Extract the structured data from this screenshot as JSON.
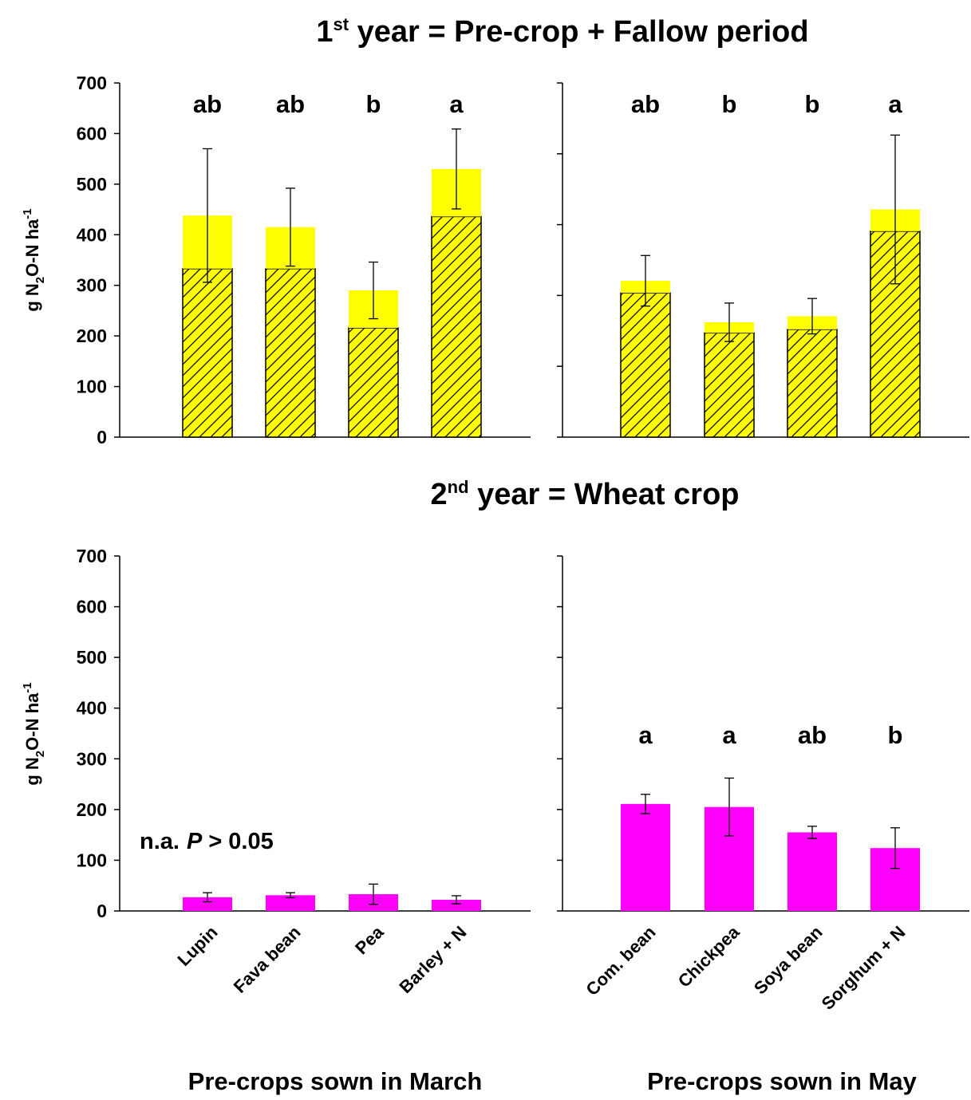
{
  "chart_data": [
    {
      "type": "bar",
      "stacked": true,
      "title": {
        "lead": "1",
        "sup": "st",
        "rest": " year = Pre-crop + Fallow period"
      },
      "ylabel": {
        "a": "g N",
        "sub": "2",
        "b": "O-N ha",
        "sup": "-1"
      },
      "series": [
        {
          "color": "#ffff00",
          "hatch": true,
          "values": [
            333,
            333,
            216,
            436
          ]
        },
        {
          "color": "#ffff00",
          "values": [
            105,
            82,
            74,
            94
          ],
          "errors": [
            132,
            77,
            56,
            79
          ]
        }
      ],
      "letters": [
        "ab",
        "ab",
        "b",
        "a"
      ],
      "ylim": [
        0,
        700
      ],
      "yticks": [
        0,
        100,
        200,
        300,
        400,
        500,
        600,
        700
      ],
      "ytick_labels": true
    },
    {
      "type": "bar",
      "stacked": true,
      "series": [
        {
          "color": "#ffff00",
          "hatch": true,
          "values": [
            285,
            206,
            213,
            407
          ]
        },
        {
          "color": "#ffff00",
          "values": [
            24,
            21,
            26,
            43
          ],
          "errors": [
            50,
            38,
            35,
            147
          ]
        }
      ],
      "letters": [
        "ab",
        "b",
        "b",
        "a"
      ],
      "ylim": [
        0,
        700
      ],
      "yticks": [
        0,
        140,
        280,
        420,
        560,
        700
      ],
      "ytick_labels": false
    },
    {
      "type": "bar",
      "title": {
        "lead": "2",
        "sup": "nd",
        "rest": " year = Wheat crop"
      },
      "ylabel": {
        "a": "g N",
        "sub": "2",
        "b": "O-N ha",
        "sup": "-1"
      },
      "xlabel": "Pre-crops sown in March",
      "categories": [
        "Lupin",
        "Fava bean",
        "Pea",
        "Barley + N"
      ],
      "series": [
        {
          "color": "#ff00ff",
          "values": [
            27,
            31,
            33,
            22
          ],
          "errors": [
            9,
            5,
            20,
            8
          ]
        }
      ],
      "annotation": [
        "n.a.",
        "P",
        "> 0.05"
      ],
      "ylim": [
        0,
        700
      ],
      "yticks": [
        0,
        100,
        200,
        300,
        400,
        500,
        600,
        700
      ],
      "ytick_labels": true
    },
    {
      "type": "bar",
      "xlabel": "Pre-crops sown in May",
      "categories": [
        "Com. bean",
        "Chickpea",
        "Soya bean",
        "Sorghum + N"
      ],
      "series": [
        {
          "color": "#ff00ff",
          "values": [
            211,
            205,
            155,
            124
          ],
          "errors": [
            19,
            57,
            12,
            40
          ]
        }
      ],
      "letters": [
        "a",
        "a",
        "ab",
        "b"
      ],
      "ylim": [
        0,
        700
      ],
      "yticks": [
        0,
        100,
        200,
        300,
        400,
        500,
        600,
        700
      ],
      "ytick_labels": false
    }
  ]
}
